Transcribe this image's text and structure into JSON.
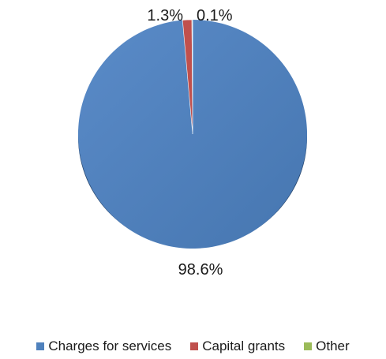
{
  "chart_data": {
    "type": "pie",
    "title": "",
    "categories": [
      "Charges for services",
      "Capital grants",
      "Other"
    ],
    "values": [
      98.6,
      1.3,
      0.1
    ],
    "labels": [
      "98.6%",
      "1.3%",
      "0.1%"
    ],
    "colors": [
      "#4f81bd",
      "#c0504d",
      "#9bbb59"
    ],
    "start_angle_deg": 0,
    "direction": "clockwise",
    "legend_position": "bottom"
  }
}
